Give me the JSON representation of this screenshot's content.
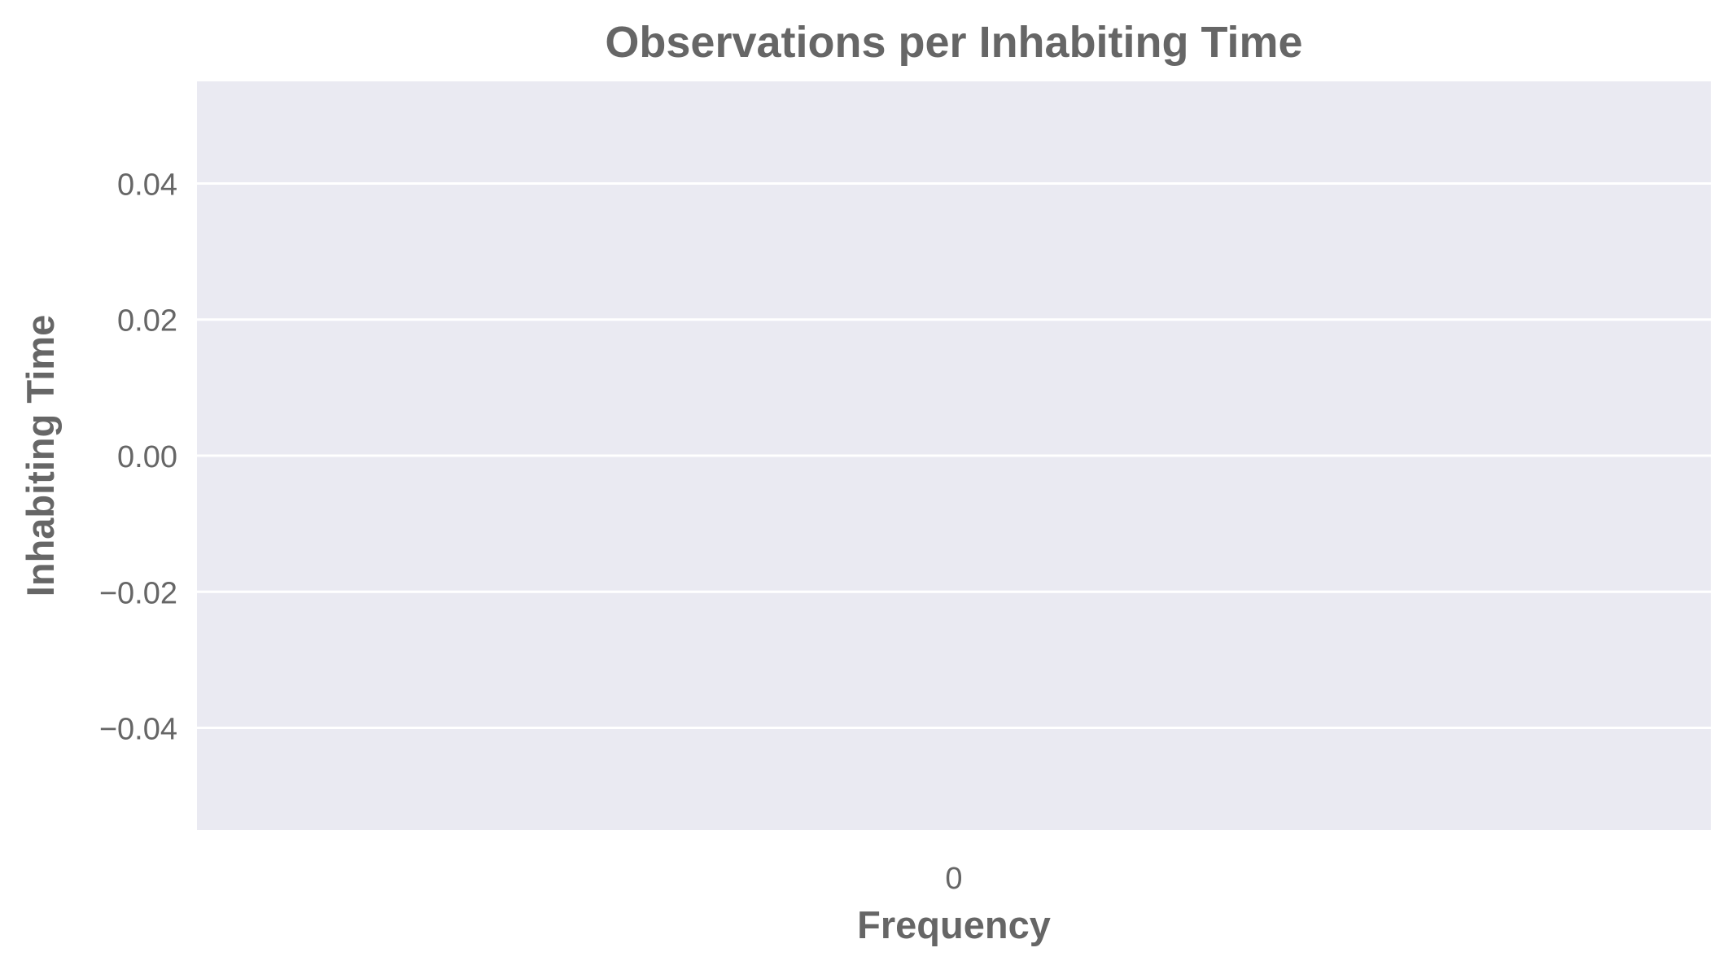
{
  "chart_data": {
    "type": "bar",
    "title": "Observations per Inhabiting Time",
    "xlabel": "Frequency",
    "ylabel": "Inhabiting Time",
    "categories": [
      "0"
    ],
    "values": [
      0
    ],
    "y_ticks": [
      "0.04",
      "0.02",
      "0.00",
      "−0.02",
      "−0.04"
    ],
    "y_tick_values": [
      0.04,
      0.02,
      0.0,
      -0.02,
      -0.04
    ],
    "ylim": [
      -0.055,
      0.055
    ],
    "grid": true,
    "legend": "none",
    "colors": {
      "plot_background": "#eaeaf2",
      "grid": "#ffffff",
      "text": "#666666"
    }
  }
}
